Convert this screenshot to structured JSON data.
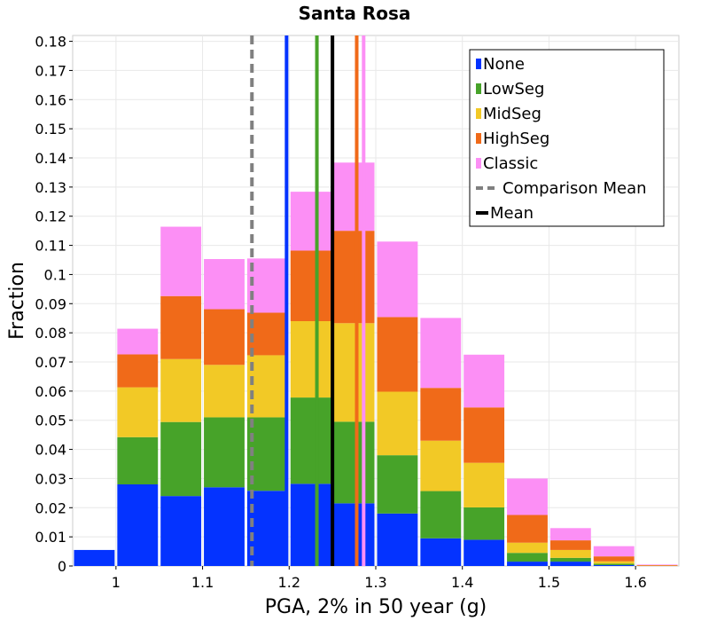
{
  "chart_data": {
    "type": "bar",
    "stacked": true,
    "title": "Santa Rosa",
    "xlabel": "PGA, 2% in 50 year (g)",
    "ylabel": "Fraction",
    "xlim": [
      0.95,
      1.65
    ],
    "ylim": [
      0,
      0.182
    ],
    "bin_width": 0.05,
    "grid": true,
    "legend_position": "top-right",
    "x_ticks": [
      "1",
      "1.1",
      "1.2",
      "1.3",
      "1.4",
      "1.5",
      "1.6"
    ],
    "x_tick_values": [
      1.0,
      1.1,
      1.2,
      1.3,
      1.4,
      1.5,
      1.6
    ],
    "y_ticks": [
      "0",
      "0.01",
      "0.02",
      "0.03",
      "0.04",
      "0.05",
      "0.06",
      "0.07",
      "0.08",
      "0.09",
      "0.1",
      "0.11",
      "0.12",
      "0.13",
      "0.14",
      "0.15",
      "0.16",
      "0.17",
      "0.18"
    ],
    "y_tick_values": [
      0,
      0.01,
      0.02,
      0.03,
      0.04,
      0.05,
      0.06,
      0.07,
      0.08,
      0.09,
      0.1,
      0.11,
      0.12,
      0.13,
      0.14,
      0.15,
      0.16,
      0.17,
      0.18
    ],
    "bin_centers": [
      0.975,
      1.025,
      1.075,
      1.125,
      1.175,
      1.225,
      1.275,
      1.325,
      1.375,
      1.425,
      1.475,
      1.525,
      1.575,
      1.625
    ],
    "series": [
      {
        "name": "None",
        "color": "#0433ff",
        "values": [
          0.0055,
          0.028,
          0.024,
          0.027,
          0.0258,
          0.0282,
          0.0215,
          0.018,
          0.0095,
          0.009,
          0.0015,
          0.0015,
          0.0003,
          0.0
        ]
      },
      {
        "name": "LowSeg",
        "color": "#47a329",
        "values": [
          0.0,
          0.0162,
          0.0254,
          0.024,
          0.0252,
          0.0296,
          0.028,
          0.02,
          0.0162,
          0.0111,
          0.003,
          0.0013,
          0.0005,
          0.0
        ]
      },
      {
        "name": "MidSeg",
        "color": "#f2c926",
        "values": [
          0.0,
          0.0171,
          0.0216,
          0.018,
          0.0213,
          0.0262,
          0.0338,
          0.0218,
          0.0173,
          0.0153,
          0.0035,
          0.0027,
          0.0008,
          0.0001
        ]
      },
      {
        "name": "HighSeg",
        "color": "#f06a19",
        "values": [
          0.0,
          0.0113,
          0.0216,
          0.0191,
          0.0146,
          0.0242,
          0.0317,
          0.0256,
          0.0181,
          0.019,
          0.0095,
          0.0033,
          0.0017,
          0.0002
        ]
      },
      {
        "name": "Classic",
        "color": "#fc8ff5",
        "values": [
          0.0,
          0.0088,
          0.0238,
          0.0172,
          0.0186,
          0.0202,
          0.0234,
          0.0259,
          0.024,
          0.0181,
          0.0125,
          0.0042,
          0.0035,
          0.0002
        ]
      }
    ],
    "vertical_lines": [
      {
        "series": "None",
        "x": 1.197,
        "color": "#0433ff",
        "style": "solid"
      },
      {
        "series": "LowSeg",
        "x": 1.232,
        "color": "#47a329",
        "style": "solid"
      },
      {
        "series": "HighSeg",
        "x": 1.278,
        "color": "#f06a19",
        "style": "solid"
      },
      {
        "series": "Classic",
        "x": 1.286,
        "color": "#fc8ff5",
        "style": "solid"
      },
      {
        "series": "Comparison Mean",
        "x": 1.157,
        "color": "#808080",
        "style": "dashed"
      },
      {
        "series": "Mean",
        "x": 1.25,
        "color": "#000000",
        "style": "solid"
      }
    ],
    "legend": [
      {
        "label": "None",
        "color": "#0433ff",
        "type": "box"
      },
      {
        "label": "LowSeg",
        "color": "#47a329",
        "type": "box"
      },
      {
        "label": "MidSeg",
        "color": "#f2c926",
        "type": "box"
      },
      {
        "label": "HighSeg",
        "color": "#f06a19",
        "type": "box"
      },
      {
        "label": "Classic",
        "color": "#fc8ff5",
        "type": "box"
      },
      {
        "label": "Comparison Mean",
        "color": "#808080",
        "type": "dash"
      },
      {
        "label": "Mean",
        "color": "#000000",
        "type": "line"
      }
    ]
  }
}
